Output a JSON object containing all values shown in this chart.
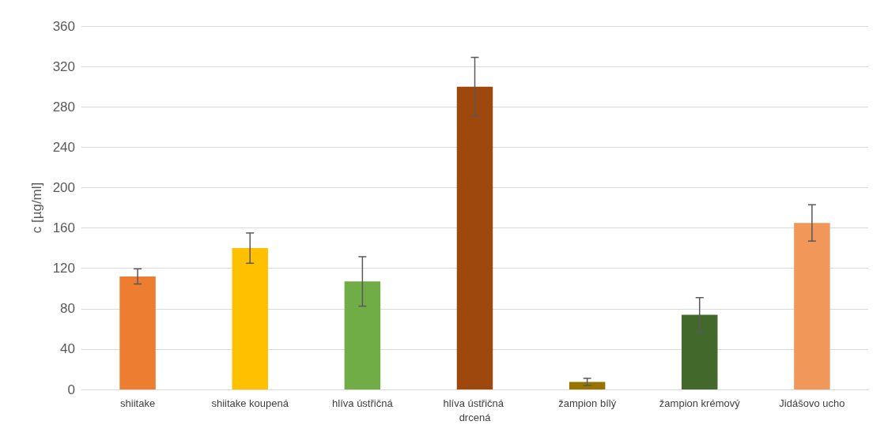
{
  "chart_data": {
    "type": "bar",
    "ylabel": "c [µg/ml]",
    "categories": [
      "shiitake",
      "shiitake koupená",
      "hlíva ústřičná",
      "hlíva ústřičná drcená",
      "žampion bílý",
      "žampion krémový",
      "Jidášovo ucho"
    ],
    "values": [
      112,
      140,
      107,
      300,
      7.5,
      74,
      165
    ],
    "errors": [
      7.5,
      15,
      24.5,
      29,
      3.5,
      17,
      18
    ],
    "colors": [
      "#ed7d31",
      "#ffc000",
      "#70ad47",
      "#9e480e",
      "#997300",
      "#43682b",
      "#f1975a"
    ],
    "ylim": [
      0,
      360
    ],
    "yticks": [
      0,
      40,
      80,
      120,
      160,
      200,
      240,
      280,
      320,
      360
    ],
    "grid": "y"
  }
}
